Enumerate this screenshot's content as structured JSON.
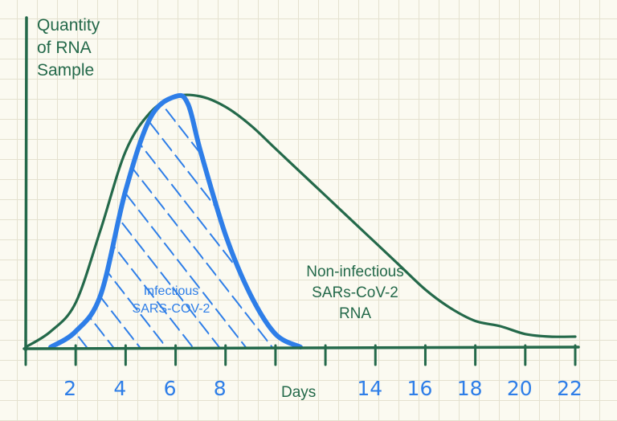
{
  "chart_data": {
    "type": "line",
    "title": "",
    "ylabel_lines": [
      "Quantity",
      "of RNA",
      "Sample"
    ],
    "xlabel": "Days",
    "xlim": [
      0,
      22
    ],
    "ylim": [
      0,
      1
    ],
    "x_ticks": [
      0,
      2,
      4,
      6,
      8,
      10,
      12,
      14,
      16,
      18,
      20,
      22
    ],
    "x_tick_labels": [
      "2",
      "4",
      "6",
      "8",
      "14",
      "16",
      "18",
      "20",
      "22"
    ],
    "x_tick_label_values": [
      2,
      4,
      6,
      8,
      14,
      16,
      18,
      20,
      22
    ],
    "grid": true,
    "series": [
      {
        "name": "Non-infectious SARs-CoV-2 RNA",
        "color": "#24694a",
        "x": [
          0,
          1,
          2,
          3,
          4,
          5,
          6,
          7,
          8,
          9,
          10,
          11,
          12,
          13,
          14,
          15,
          16,
          17,
          18,
          19,
          20,
          21,
          22
        ],
        "y": [
          0.0,
          0.06,
          0.17,
          0.45,
          0.75,
          0.9,
          0.96,
          0.96,
          0.92,
          0.85,
          0.76,
          0.67,
          0.58,
          0.49,
          0.4,
          0.31,
          0.22,
          0.15,
          0.1,
          0.08,
          0.05,
          0.04,
          0.04
        ]
      },
      {
        "name": "Infectious SARS-COV-2",
        "color": "#2e7ee8",
        "x": [
          1,
          2,
          3,
          4,
          5,
          6,
          6.5,
          7,
          8,
          9,
          10,
          11
        ],
        "y": [
          0.0,
          0.06,
          0.2,
          0.6,
          0.88,
          0.96,
          0.93,
          0.75,
          0.43,
          0.2,
          0.05,
          0.0
        ]
      }
    ],
    "annotations": {
      "infectious": [
        "Infectious",
        "SARS-COV-2"
      ],
      "non_infectious": [
        "Non-infectious",
        "SARs-CoV-2",
        "RNA"
      ]
    }
  }
}
